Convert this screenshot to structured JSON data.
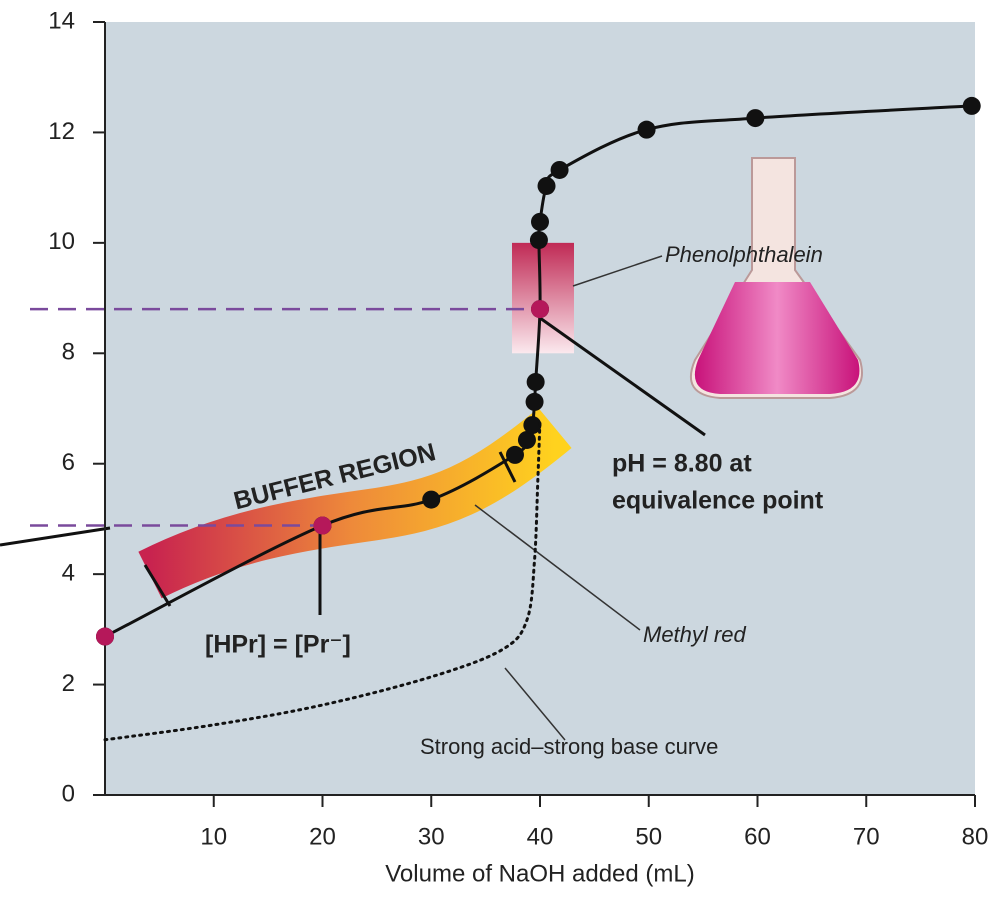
{
  "chart_data": {
    "type": "line",
    "x_label": "Volume of NaOH added (mL)",
    "xlim": [
      0,
      80
    ],
    "xticks": [
      10,
      20,
      30,
      40,
      50,
      60,
      70,
      80
    ],
    "ylim": [
      0,
      14
    ],
    "yticks": [
      0,
      2,
      4,
      6,
      8,
      10,
      12,
      14
    ],
    "series": [
      {
        "color": "#111111",
        "style": "solid",
        "markers": true,
        "x": [
          0,
          20,
          30,
          37.7,
          38.8,
          39.3,
          39.5,
          39.6,
          40,
          39.9,
          40,
          40.6,
          41.8,
          49.8,
          59.8,
          79.7
        ],
        "y": [
          2.87,
          4.88,
          5.35,
          6.16,
          6.43,
          6.7,
          7.12,
          7.48,
          8.8,
          10.05,
          10.38,
          11.03,
          11.32,
          12.05,
          12.26,
          12.48
        ]
      },
      {
        "color": "#b5185a",
        "style": "none",
        "markers": true,
        "x": [
          0,
          20,
          40
        ],
        "y": [
          2.87,
          4.88,
          8.8
        ]
      },
      {
        "color": "#111111",
        "style": "dotted",
        "markers": false,
        "x": [
          0,
          10,
          20,
          30,
          36.5,
          38.8,
          39.5,
          39.8,
          40
        ],
        "y": [
          1.0,
          1.27,
          1.63,
          2.14,
          2.63,
          3.17,
          4.26,
          5.7,
          6.8
        ]
      }
    ],
    "phenolphthalein_range": [
      8.0,
      10.0
    ],
    "annotations": {
      "buffer": "BUFFER REGION",
      "half_equivalence": "[HPr] = [Pr⁻]",
      "equivalence": [
        "pH = 8.80 at",
        "equivalence point"
      ],
      "phenolphthalein": "Phenolphthalein",
      "methyl_red": "Methyl red",
      "strong": "Strong acid–strong base curve"
    }
  }
}
